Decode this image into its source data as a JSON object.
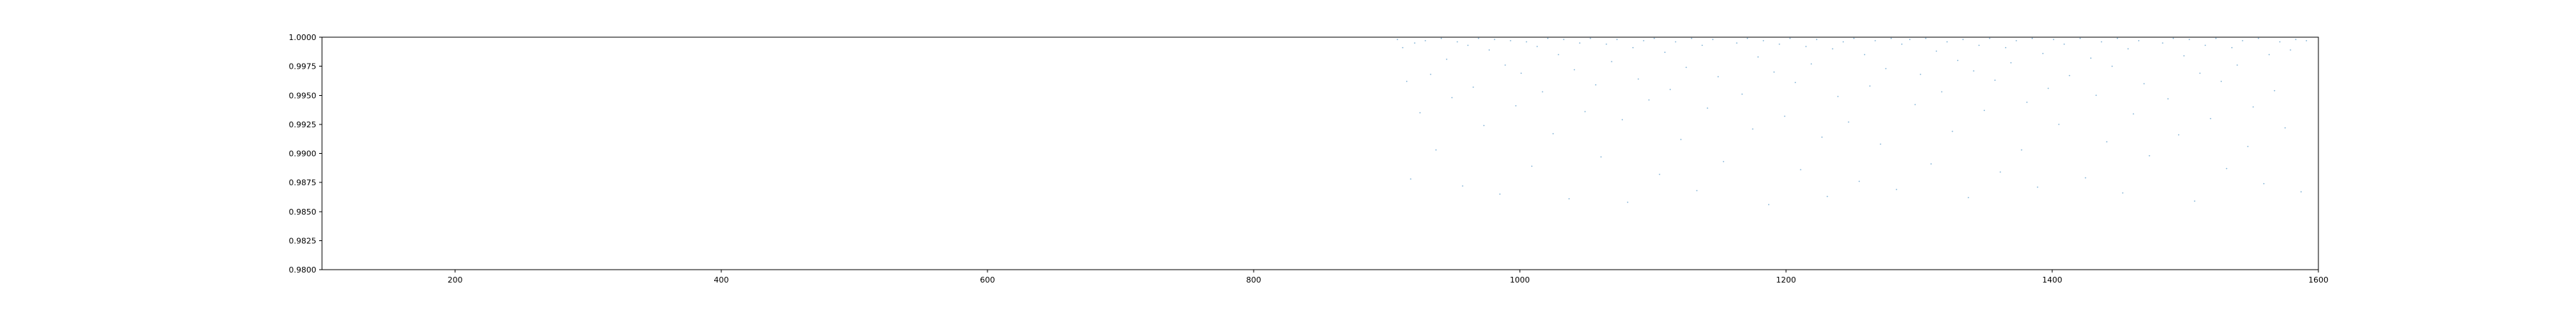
{
  "chart_data": {
    "type": "scatter",
    "title": "",
    "xlabel": "",
    "ylabel": "",
    "xlim": [
      100,
      1600
    ],
    "ylim": [
      0.98,
      1.0
    ],
    "grid": false,
    "legend": "none",
    "marker_color": "#1f77b4",
    "xticks": [
      200,
      400,
      600,
      800,
      1000,
      1200,
      1400,
      1600
    ],
    "yticks": [
      0.98,
      0.9825,
      0.985,
      0.9875,
      0.99,
      0.9925,
      0.995,
      0.9975,
      1.0
    ],
    "xtick_labels": [
      "200",
      "400",
      "600",
      "800",
      "1000",
      "1200",
      "1400",
      "1600"
    ],
    "ytick_labels": [
      "0.9800",
      "0.9825",
      "0.9850",
      "0.9875",
      "0.9900",
      "0.9925",
      "0.9950",
      "0.9975",
      "1.0000"
    ],
    "series": [
      {
        "points": [
          [
            908,
            0.9998
          ],
          [
            912,
            0.9991
          ],
          [
            915,
            0.9962
          ],
          [
            918,
            0.9878
          ],
          [
            921,
            0.9995
          ],
          [
            925,
            0.9935
          ],
          [
            929,
            0.9997
          ],
          [
            933,
            0.9968
          ],
          [
            937,
            0.9903
          ],
          [
            941,
            0.9999
          ],
          [
            945,
            0.9981
          ],
          [
            949,
            0.9948
          ],
          [
            953,
            0.9996
          ],
          [
            957,
            0.9872
          ],
          [
            961,
            0.9993
          ],
          [
            965,
            0.9957
          ],
          [
            969,
            0.9999
          ],
          [
            973,
            0.9924
          ],
          [
            977,
            0.9989
          ],
          [
            981,
            0.9998
          ],
          [
            985,
            0.9865
          ],
          [
            989,
            0.9976
          ],
          [
            993,
            0.9997
          ],
          [
            997,
            0.9941
          ],
          [
            1001,
            0.9969
          ],
          [
            1005,
            0.9996
          ],
          [
            1009,
            0.9889
          ],
          [
            1013,
            0.9992
          ],
          [
            1017,
            0.9953
          ],
          [
            1021,
            0.9999
          ],
          [
            1025,
            0.9917
          ],
          [
            1029,
            0.9985
          ],
          [
            1033,
            0.9998
          ],
          [
            1037,
            0.9861
          ],
          [
            1041,
            0.9972
          ],
          [
            1045,
            0.9995
          ],
          [
            1049,
            0.9936
          ],
          [
            1053,
            0.9999
          ],
          [
            1057,
            0.9959
          ],
          [
            1061,
            0.9897
          ],
          [
            1065,
            0.9994
          ],
          [
            1069,
            0.9979
          ],
          [
            1073,
            0.9998
          ],
          [
            1077,
            0.9929
          ],
          [
            1081,
            0.9858
          ],
          [
            1085,
            0.9991
          ],
          [
            1089,
            0.9964
          ],
          [
            1093,
            0.9997
          ],
          [
            1097,
            0.9946
          ],
          [
            1101,
            0.9999
          ],
          [
            1105,
            0.9882
          ],
          [
            1109,
            0.9987
          ],
          [
            1113,
            0.9955
          ],
          [
            1117,
            0.9996
          ],
          [
            1121,
            0.9912
          ],
          [
            1125,
            0.9974
          ],
          [
            1129,
            0.9999
          ],
          [
            1133,
            0.9868
          ],
          [
            1137,
            0.9993
          ],
          [
            1141,
            0.9939
          ],
          [
            1145,
            0.9998
          ],
          [
            1149,
            0.9966
          ],
          [
            1153,
            0.9893
          ],
          [
            1163,
            0.9995
          ],
          [
            1167,
            0.9951
          ],
          [
            1171,
            0.9999
          ],
          [
            1175,
            0.9921
          ],
          [
            1179,
            0.9983
          ],
          [
            1183,
            0.9997
          ],
          [
            1187,
            0.9856
          ],
          [
            1191,
            0.997
          ],
          [
            1195,
            0.9994
          ],
          [
            1199,
            0.9932
          ],
          [
            1203,
            0.9999
          ],
          [
            1207,
            0.9961
          ],
          [
            1211,
            0.9886
          ],
          [
            1215,
            0.9992
          ],
          [
            1219,
            0.9977
          ],
          [
            1223,
            0.9998
          ],
          [
            1227,
            0.9914
          ],
          [
            1231,
            0.9863
          ],
          [
            1235,
            0.999
          ],
          [
            1239,
            0.9949
          ],
          [
            1243,
            0.9996
          ],
          [
            1247,
            0.9927
          ],
          [
            1251,
            0.9999
          ],
          [
            1255,
            0.9876
          ],
          [
            1259,
            0.9985
          ],
          [
            1263,
            0.9958
          ],
          [
            1267,
            0.9997
          ],
          [
            1271,
            0.9908
          ],
          [
            1275,
            0.9973
          ],
          [
            1279,
            0.9999
          ],
          [
            1283,
            0.9869
          ],
          [
            1287,
            0.9994
          ],
          [
            1293,
            0.9998
          ],
          [
            1297,
            0.9942
          ],
          [
            1301,
            0.9968
          ],
          [
            1305,
            0.9999
          ],
          [
            1309,
            0.9891
          ],
          [
            1313,
            0.9988
          ],
          [
            1317,
            0.9953
          ],
          [
            1321,
            0.9996
          ],
          [
            1325,
            0.9919
          ],
          [
            1329,
            0.998
          ],
          [
            1333,
            0.9998
          ],
          [
            1337,
            0.9862
          ],
          [
            1341,
            0.9971
          ],
          [
            1345,
            0.9993
          ],
          [
            1349,
            0.9937
          ],
          [
            1353,
            0.9999
          ],
          [
            1357,
            0.9963
          ],
          [
            1361,
            0.9884
          ],
          [
            1365,
            0.9991
          ],
          [
            1369,
            0.9978
          ],
          [
            1373,
            0.9997
          ],
          [
            1377,
            0.9903
          ],
          [
            1381,
            0.9944
          ],
          [
            1385,
            0.9999
          ],
          [
            1389,
            0.9871
          ],
          [
            1393,
            0.9986
          ],
          [
            1397,
            0.9956
          ],
          [
            1401,
            0.9998
          ],
          [
            1405,
            0.9925
          ],
          [
            1409,
            0.9994
          ],
          [
            1413,
            0.9967
          ],
          [
            1421,
            0.9999
          ],
          [
            1425,
            0.9879
          ],
          [
            1429,
            0.9982
          ],
          [
            1433,
            0.995
          ],
          [
            1437,
            0.9996
          ],
          [
            1441,
            0.991
          ],
          [
            1445,
            0.9975
          ],
          [
            1449,
            0.9999
          ],
          [
            1453,
            0.9866
          ],
          [
            1457,
            0.999
          ],
          [
            1461,
            0.9934
          ],
          [
            1465,
            0.9997
          ],
          [
            1469,
            0.996
          ],
          [
            1473,
            0.9898
          ],
          [
            1483,
            0.9995
          ],
          [
            1487,
            0.9947
          ],
          [
            1491,
            0.9999
          ],
          [
            1495,
            0.9916
          ],
          [
            1499,
            0.9984
          ],
          [
            1503,
            0.9998
          ],
          [
            1507,
            0.9859
          ],
          [
            1511,
            0.9969
          ],
          [
            1515,
            0.9993
          ],
          [
            1519,
            0.993
          ],
          [
            1523,
            0.9999
          ],
          [
            1527,
            0.9962
          ],
          [
            1531,
            0.9887
          ],
          [
            1535,
            0.9991
          ],
          [
            1539,
            0.9976
          ],
          [
            1543,
            0.9997
          ],
          [
            1547,
            0.9906
          ],
          [
            1551,
            0.994
          ],
          [
            1555,
            0.9999
          ],
          [
            1559,
            0.9874
          ],
          [
            1563,
            0.9985
          ],
          [
            1567,
            0.9954
          ],
          [
            1571,
            0.9996
          ],
          [
            1575,
            0.9922
          ],
          [
            1579,
            0.9989
          ],
          [
            1583,
            0.9998
          ],
          [
            1587,
            0.9867
          ],
          [
            1591,
            0.9997
          ]
        ]
      }
    ]
  }
}
